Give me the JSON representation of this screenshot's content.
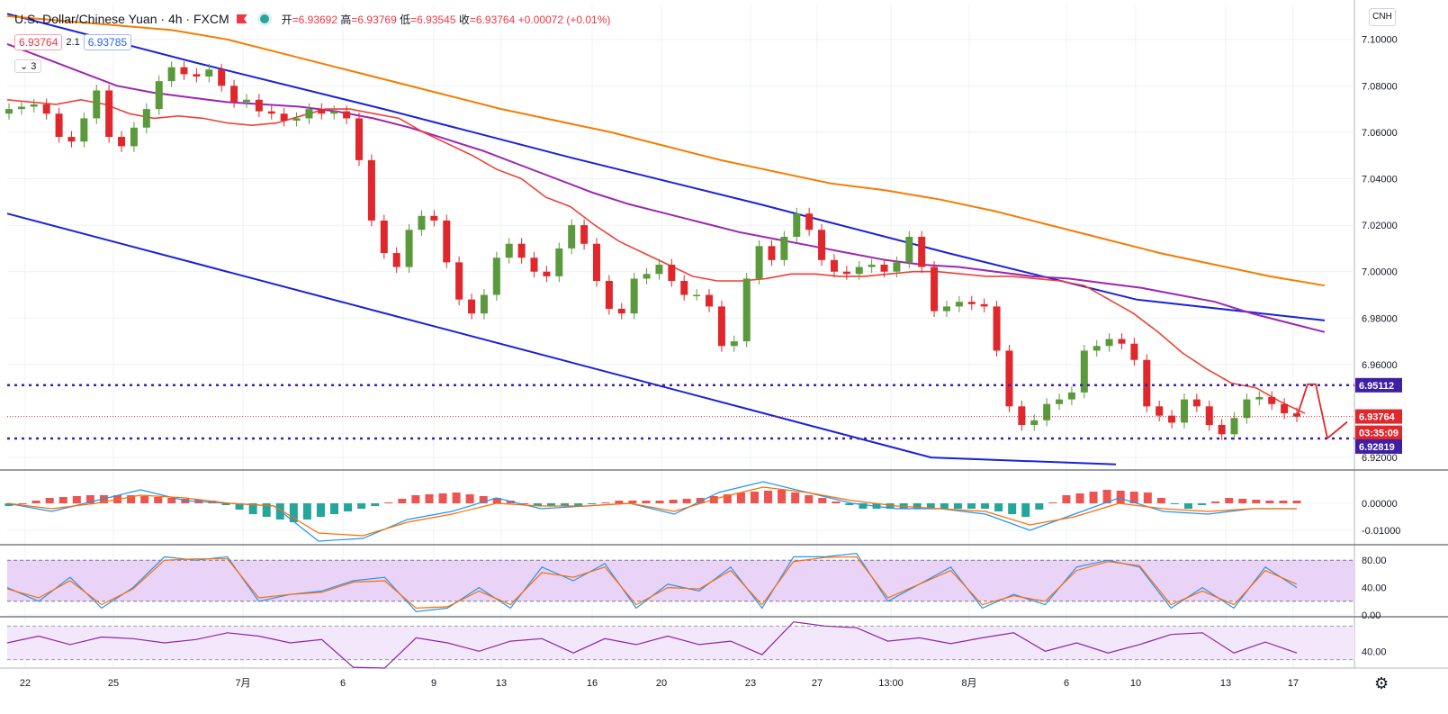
{
  "header": {
    "title": "U.S. Dollar/Chinese Yuan · 4h · FXCM",
    "open_label": "开",
    "open": "=6.93692",
    "high_label": "高",
    "high": "=6.93769",
    "low_label": "低",
    "low": "=6.93545",
    "close_label": "收",
    "close": "=6.93764",
    "change": "+0.00072 (+0.01%)",
    "bid": "6.93764",
    "spread": "2.1",
    "ask": "6.93785",
    "indicator_count": "3",
    "symbol_badge": "CNH"
  },
  "colors": {
    "bull": "#5b9a3c",
    "bear": "#e0272b",
    "ma_red": "#ef4136",
    "ma_purple": "#9c27b0",
    "ma_orange": "#f57c00",
    "channel": "#1a22d8",
    "level": "#3f1fa3",
    "macd": "#2196f3",
    "signal": "#ff6d00"
  },
  "chart_data": [
    {
      "type": "line",
      "title": "U.S. Dollar/Chinese Yuan · 4h · FXCM",
      "ylim": [
        6.915,
        7.115
      ],
      "y_ticks": [
        "7.10000",
        "7.08000",
        "7.06000",
        "7.04000",
        "7.02000",
        "7.00000",
        "6.98000",
        "6.96000",
        "6.92000"
      ],
      "x_ticks": [
        "22",
        "25",
        "7月",
        "6",
        "9",
        "13",
        "16",
        "20",
        "23",
        "27",
        "13:00",
        "8月",
        "6",
        "10",
        "13",
        "17"
      ],
      "series": [
        {
          "style": "candlestick-close",
          "values": [
            7.07,
            7.071,
            7.072,
            7.068,
            7.058,
            7.056,
            7.066,
            7.078,
            7.058,
            7.054,
            7.062,
            7.07,
            7.082,
            7.088,
            7.085,
            7.084,
            7.087,
            7.08,
            7.073,
            7.074,
            7.069,
            7.068,
            7.065,
            7.066,
            7.07,
            7.068,
            7.069,
            7.066,
            7.048,
            7.022,
            7.008,
            7.002,
            7.018,
            7.024,
            7.022,
            7.004,
            6.988,
            6.982,
            6.99,
            7.006,
            7.012,
            7.006,
            7.0,
            6.998,
            7.01,
            7.02,
            7.012,
            6.996,
            6.984,
            6.982,
            6.997,
            6.999,
            7.003,
            6.996,
            6.99,
            6.99,
            6.985,
            6.968,
            6.97,
            6.997,
            7.011,
            7.005,
            7.015,
            7.025,
            7.018,
            7.005,
            7.0,
            6.999,
            7.002,
            7.003,
            7.0,
            7.004,
            7.015,
            7.002,
            6.983,
            6.985,
            6.987,
            6.986,
            6.985,
            6.966,
            6.942,
            6.934,
            6.936,
            6.943,
            6.945,
            6.948,
            6.966,
            6.968,
            6.971,
            6.969,
            6.962,
            6.942,
            6.938,
            6.935,
            6.945,
            6.942,
            6.934,
            6.93,
            6.937,
            6.945,
            6.946,
            6.943,
            6.939,
            6.93764
          ]
        },
        {
          "name": "",
          "values": [
            7.074,
            7.073,
            7.072,
            7.074,
            7.072,
            7.068,
            7.066,
            7.067,
            7.066,
            7.064,
            7.063,
            7.064,
            7.067,
            7.07,
            7.07,
            7.068,
            7.066,
            7.06,
            7.055,
            7.05,
            7.044,
            7.04,
            7.032,
            7.028,
            7.02,
            7.013,
            7.008,
            7.003,
            6.998,
            6.996,
            6.996,
            6.997,
            6.999,
            6.999,
            6.998,
            6.998,
            6.999,
            7.0,
            7.0,
            6.999,
            6.998,
            6.998,
            6.997,
            6.996,
            6.994,
            6.988,
            6.982,
            6.974,
            6.965,
            6.958,
            6.952,
            6.95,
            6.944,
            6.939
          ]
        },
        {
          "name": "",
          "values": [
            7.098,
            7.092,
            7.086,
            7.08,
            7.077,
            7.075,
            7.073,
            7.072,
            7.071,
            7.069,
            7.066,
            7.062,
            7.057,
            7.052,
            7.046,
            7.04,
            7.034,
            7.029,
            7.025,
            7.021,
            7.017,
            7.014,
            7.011,
            7.008,
            7.005,
            7.003,
            7.002,
            7.0,
            6.998,
            6.997,
            6.995,
            6.993,
            6.99,
            6.987,
            6.982,
            6.978,
            6.974
          ]
        },
        {
          "name": "",
          "values": [
            7.11,
            7.108,
            7.106,
            7.104,
            7.1,
            7.094,
            7.088,
            7.082,
            7.076,
            7.07,
            7.065,
            7.06,
            7.054,
            7.048,
            7.043,
            7.038,
            7.035,
            7.031,
            7.026,
            7.02,
            7.014,
            7.008,
            7.003,
            6.998,
            6.994
          ]
        },
        {
          "name": "",
          "values": [
            7.111,
            7.09,
            7.07,
            7.049,
            7.029,
            7.008,
            6.988,
            6.979
          ]
        },
        {
          "name": "",
          "values": [
            7.025,
            7.004,
            6.983,
            6.962,
            6.941,
            6.92,
            6.917
          ]
        }
      ],
      "levels": [
        {
          "label": "6.95112",
          "value": 6.95112
        },
        {
          "label": "6.93764",
          "value": 6.93764,
          "countdown": "03:35:09"
        },
        {
          "label": "6.92819",
          "value": 6.92819
        }
      ]
    },
    {
      "type": "bar",
      "ylim": [
        -0.015,
        0.012
      ],
      "y_ticks": [
        "0.00000",
        "-0.01000"
      ],
      "series": [
        {
          "style": "histogram",
          "values": [
            -0.001,
            0.002,
            0.003,
            0.003,
            0.002,
            0.001,
            -0.004,
            -0.007,
            -0.004,
            -0.001,
            0.003,
            0.004,
            0.002,
            -0.001,
            -0.001,
            0.001,
            0.001,
            0.002,
            0.004,
            0.005,
            0.002,
            -0.002,
            -0.002,
            -0.002,
            -0.002,
            -0.005,
            0.003,
            0.005,
            0.004,
            -0.002,
            0.002,
            0.001
          ]
        },
        {
          "name": "",
          "values": [
            0.0,
            -0.003,
            0.001,
            0.005,
            0.001,
            0.0,
            -0.001,
            -0.014,
            -0.013,
            -0.006,
            -0.003,
            0.002,
            -0.002,
            -0.001,
            0.0,
            -0.004,
            0.004,
            0.008,
            0.004,
            0.0,
            -0.002,
            -0.002,
            -0.004,
            -0.01,
            -0.004,
            0.002,
            -0.003,
            -0.004,
            -0.002,
            -0.002
          ]
        },
        {
          "name": "",
          "values": [
            0.0,
            -0.002,
            0.0,
            0.003,
            0.002,
            0.0,
            -0.001,
            -0.011,
            -0.012,
            -0.007,
            -0.004,
            0.0,
            -0.001,
            -0.001,
            0.0,
            -0.003,
            0.002,
            0.006,
            0.004,
            0.001,
            -0.001,
            -0.002,
            -0.003,
            -0.008,
            -0.005,
            0.0,
            -0.002,
            -0.003,
            -0.002,
            -0.002
          ]
        }
      ]
    },
    {
      "type": "line",
      "ylim": [
        0,
        100
      ],
      "y_ticks": [
        "80.00",
        "40.00",
        "0.00"
      ],
      "series": [
        {
          "name": "",
          "values": [
            40,
            20,
            55,
            10,
            40,
            85,
            80,
            85,
            20,
            30,
            35,
            50,
            55,
            5,
            10,
            40,
            10,
            70,
            50,
            75,
            10,
            45,
            35,
            70,
            10,
            85,
            85,
            90,
            20,
            45,
            70,
            10,
            30,
            15,
            70,
            80,
            70,
            10,
            40,
            10,
            70,
            40
          ]
        },
        {
          "name": "",
          "values": [
            38,
            25,
            50,
            15,
            38,
            80,
            82,
            82,
            25,
            30,
            33,
            48,
            50,
            10,
            12,
            35,
            15,
            62,
            55,
            70,
            15,
            40,
            38,
            65,
            15,
            78,
            84,
            85,
            25,
            45,
            65,
            15,
            28,
            20,
            65,
            78,
            72,
            15,
            35,
            15,
            65,
            45
          ]
        }
      ]
    },
    {
      "type": "line",
      "ylim": [
        20,
        80
      ],
      "y_ticks": [
        "40.00"
      ],
      "series": [
        {
          "name": "",
          "values": [
            50,
            58,
            48,
            57,
            55,
            50,
            54,
            62,
            58,
            50,
            54,
            21,
            20,
            56,
            50,
            40,
            52,
            55,
            38,
            55,
            48,
            58,
            48,
            52,
            36,
            75,
            70,
            68,
            52,
            56,
            49,
            56,
            62,
            40,
            50,
            38,
            48,
            60,
            62,
            38,
            51,
            38
          ]
        }
      ]
    }
  ]
}
